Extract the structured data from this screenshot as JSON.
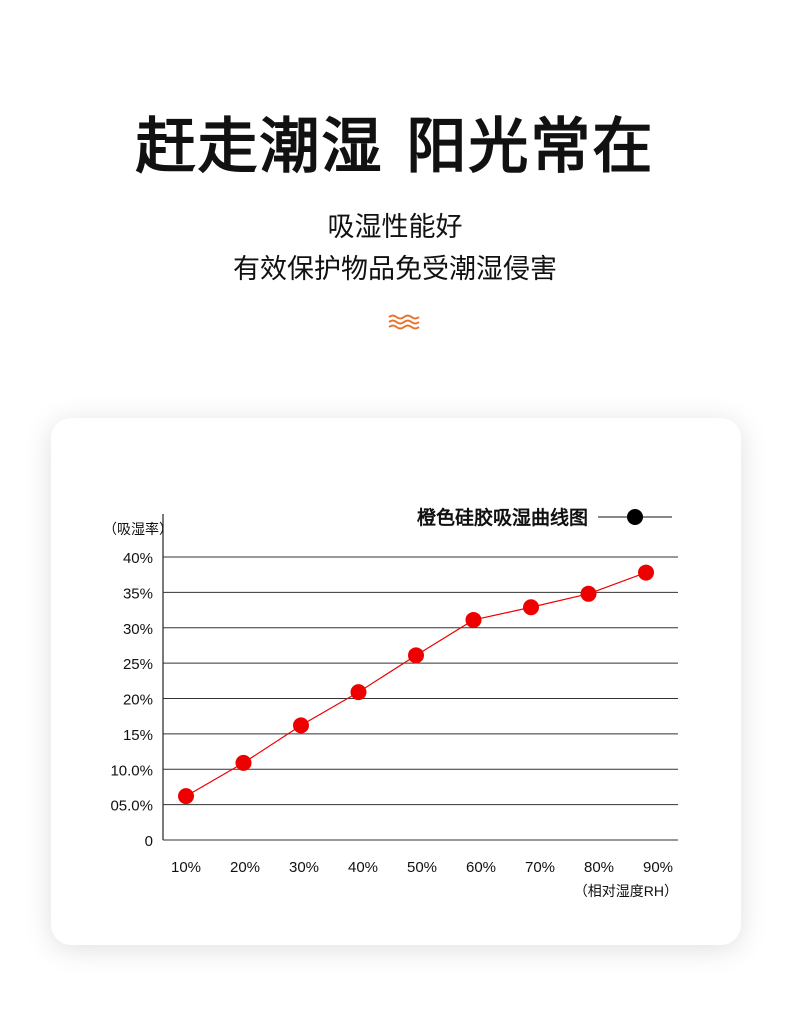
{
  "header": {
    "title": "赶走潮湿 阳光常在",
    "subtitle_line1": "吸湿性能好",
    "subtitle_line2": "有效保护物品免受潮湿侵害",
    "wave_icon": "wave-icon",
    "accent": "#e8742c"
  },
  "chart_data": {
    "type": "line",
    "title": "",
    "legend": {
      "label": "橙色硅胶吸湿曲线图",
      "position": "top-right",
      "marker_color": "#000000"
    },
    "ylabel": "（吸湿率）",
    "xlabel": "（相对湿度RH）",
    "categories": [
      "10%",
      "20%",
      "30%",
      "40%",
      "50%",
      "60%",
      "70%",
      "80%",
      "90%"
    ],
    "x": [
      10,
      20,
      30,
      40,
      50,
      60,
      70,
      80,
      90
    ],
    "values": [
      6.2,
      10.9,
      16.2,
      20.9,
      26.1,
      31.1,
      32.9,
      34.8,
      37.8
    ],
    "yticks": [
      0,
      5,
      10,
      15,
      20,
      25,
      30,
      35,
      40
    ],
    "ytick_labels": [
      "0",
      "05.0%",
      "10.0%",
      "15%",
      "20%",
      "25%",
      "30%",
      "35%",
      "40%"
    ],
    "ylim": [
      0,
      40
    ],
    "grid": true,
    "series_color": "#ee0000"
  }
}
